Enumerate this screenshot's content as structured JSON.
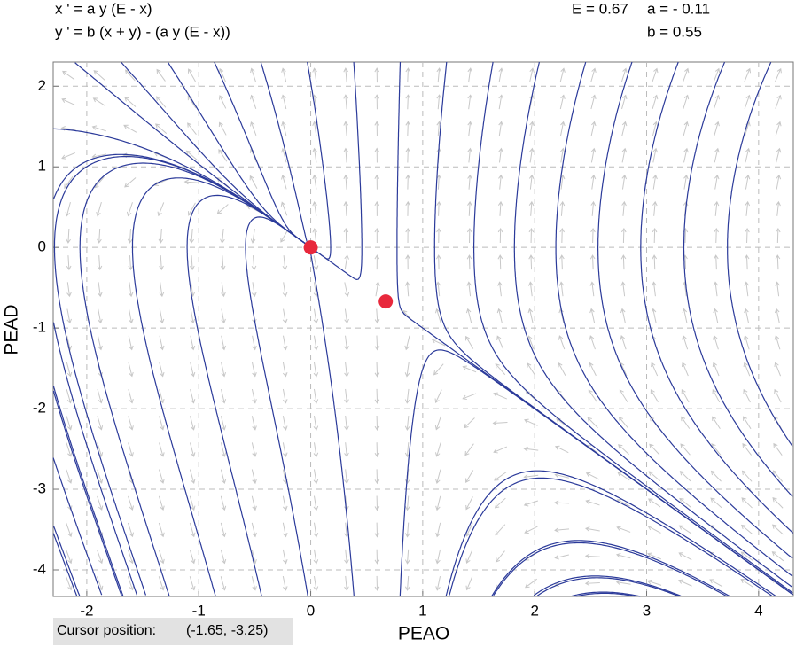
{
  "chart_data": {
    "type": "phase",
    "equations": [
      "x ' = a y (E - x)",
      "y ' = b (x + y) - (a y (E - x))"
    ],
    "parameters": {
      "E": {
        "value": 0.67,
        "label": "E = 0.67"
      },
      "a": {
        "value": -0.11,
        "label": "a = - 0.11"
      },
      "b": {
        "value": 0.55,
        "label": "b = 0.55"
      }
    },
    "x_label": "PEAO",
    "y_label": "PEAD",
    "xlim": [
      -2.3,
      4.31
    ],
    "ylim": [
      -4.33,
      2.3
    ],
    "xticks": [
      -2,
      -1,
      0,
      1,
      2,
      3,
      4
    ],
    "yticks": [
      -4,
      -3,
      -2,
      -1,
      0,
      1,
      2
    ],
    "grid": true,
    "trajectory_color": "#2b3a9a",
    "equilibrium_color": "#e8283c",
    "field_color": "#c8c8c8",
    "equilibria": [
      {
        "x": 0,
        "y": 0
      },
      {
        "x": 0.67,
        "y": -0.67
      }
    ],
    "cursor": {
      "label": "Cursor position:",
      "value": "(-1.65, -3.25)"
    }
  }
}
